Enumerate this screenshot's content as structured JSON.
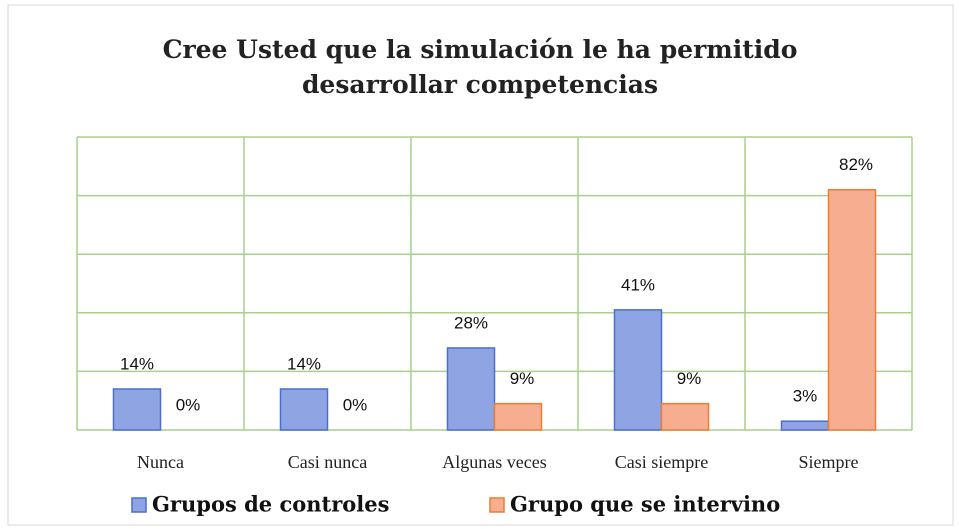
{
  "chart_data": {
    "type": "bar",
    "title": "Cree Usted que la simulación le ha permitido desarrollar competencias",
    "categories": [
      "Nunca",
      "Casi nunca",
      "Algunas veces",
      "Casi siempre",
      "Siempre"
    ],
    "series": [
      {
        "name": "Grupos de controles",
        "color": "#8fa5e3",
        "edge": "#4a6fcf",
        "values": [
          14,
          14,
          28,
          41,
          3
        ],
        "value_labels": [
          "14%",
          "14%",
          "28%",
          "41%",
          "3%"
        ]
      },
      {
        "name": "Grupo que se intervino",
        "color": "#f6ad90",
        "edge": "#ed7d31",
        "values": [
          0,
          0,
          9,
          9,
          82
        ],
        "value_labels": [
          "0%",
          "0%",
          "9%",
          "9%",
          "82%"
        ]
      }
    ],
    "ylim": [
      0,
      100
    ],
    "yticks": [
      0,
      20,
      40,
      60,
      80,
      100
    ],
    "grid": true,
    "grid_color": "#a9d18e",
    "legend": "bottom"
  }
}
